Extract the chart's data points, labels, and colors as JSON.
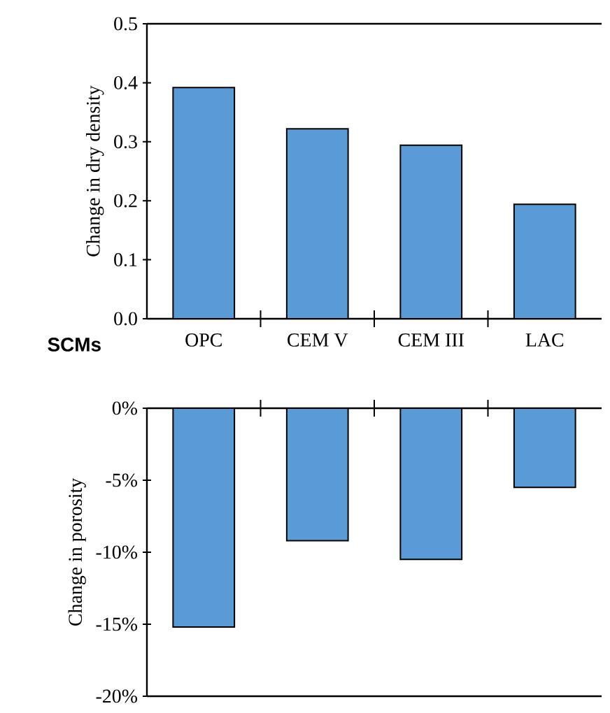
{
  "chart_data": [
    {
      "type": "bar",
      "categories": [
        "OPC",
        "CEM V",
        "CEM III",
        "LAC"
      ],
      "values": [
        0.392,
        0.322,
        0.294,
        0.194
      ],
      "color": "#5b9bd5",
      "xlabel": "SCMs",
      "ylabel": "Change in dry density",
      "ylim": [
        0,
        0.5
      ],
      "yticks": [
        {
          "value": 0,
          "label": "0.0"
        },
        {
          "value": 0.1,
          "label": "0.1"
        },
        {
          "value": 0.2,
          "label": "0.2"
        },
        {
          "value": 0.3,
          "label": "0.3"
        },
        {
          "value": 0.4,
          "label": "0.4"
        },
        {
          "value": 0.5,
          "label": "0.5"
        }
      ]
    },
    {
      "type": "bar",
      "categories": [
        null,
        null,
        null,
        null
      ],
      "values": [
        -15.2,
        -9.2,
        -10.5,
        -5.5
      ],
      "color": "#5b9bd5",
      "ylabel": "Change in porosity",
      "ylim": [
        -20,
        0
      ],
      "tick_labels": "y",
      "yticks": [
        {
          "value": -20,
          "label": "-20%"
        },
        {
          "value": -15,
          "label": "-15%"
        },
        {
          "value": -10,
          "label": "-10%"
        },
        {
          "value": -5,
          "label": "-5%"
        },
        {
          "value": 0,
          "label": "0%"
        }
      ]
    }
  ]
}
